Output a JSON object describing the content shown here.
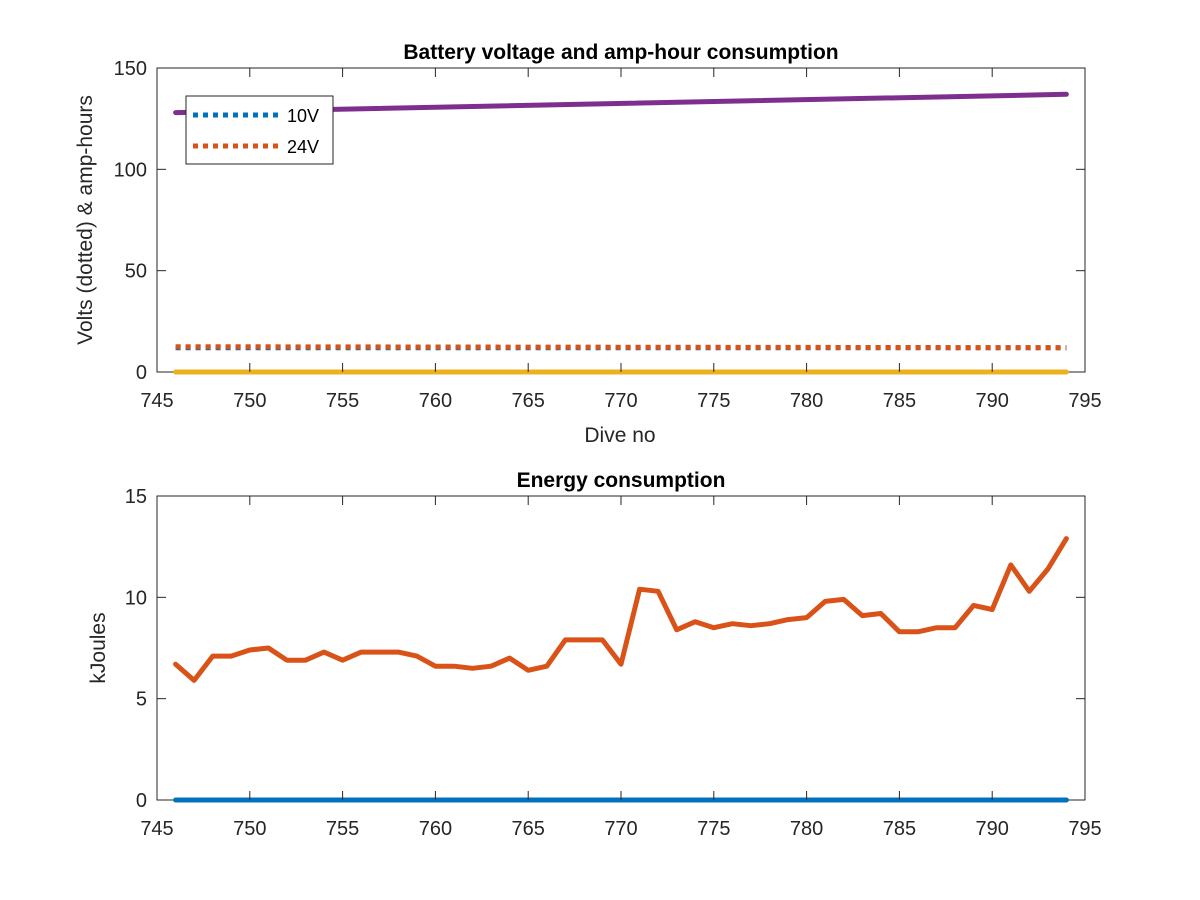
{
  "colors": {
    "blue": "#0072BD",
    "orange": "#D95319",
    "yellow": "#EDB120",
    "purple": "#7E2F8E",
    "axis": "#262626"
  },
  "chart_data": [
    {
      "type": "line",
      "title": "Battery voltage and amp-hour consumption",
      "xlabel": "Dive no",
      "ylabel": "Volts (dotted) & amp-hours",
      "xlim": [
        745,
        795
      ],
      "ylim": [
        0,
        150
      ],
      "xticks": [
        745,
        750,
        755,
        760,
        765,
        770,
        775,
        780,
        785,
        790,
        795
      ],
      "yticks": [
        0,
        50,
        100,
        150
      ],
      "grid": false,
      "legend": {
        "placement": "top-left",
        "entries": [
          "10V",
          "24V"
        ]
      },
      "series": [
        {
          "name": "10V",
          "style": "dotted",
          "color": "#0072BD",
          "x": [
            746,
            794
          ],
          "y": [
            12,
            12
          ]
        },
        {
          "name": "24V",
          "style": "dotted",
          "color": "#D95319",
          "x": [
            746,
            794
          ],
          "y": [
            12.5,
            12
          ]
        },
        {
          "style": "solid",
          "color": "#EDB120",
          "x": [
            746,
            794
          ],
          "y": [
            0,
            0
          ]
        },
        {
          "style": "solid",
          "color": "#7E2F8E",
          "x": [
            746,
            794
          ],
          "y": [
            128,
            137
          ]
        }
      ]
    },
    {
      "type": "line",
      "title": "Energy consumption",
      "xlabel": "",
      "ylabel": "kJoules",
      "xlim": [
        745,
        795
      ],
      "ylim": [
        0,
        15
      ],
      "xticks": [
        745,
        750,
        755,
        760,
        765,
        770,
        775,
        780,
        785,
        790,
        795
      ],
      "yticks": [
        0,
        5,
        10,
        15
      ],
      "grid": false,
      "series": [
        {
          "style": "solid",
          "color": "#0072BD",
          "x": [
            746,
            794
          ],
          "y": [
            0,
            0
          ]
        },
        {
          "style": "solid",
          "color": "#D95319",
          "x": [
            746,
            747,
            748,
            749,
            750,
            751,
            752,
            753,
            754,
            755,
            756,
            757,
            758,
            759,
            760,
            761,
            762,
            763,
            764,
            765,
            766,
            767,
            768,
            769,
            770,
            771,
            772,
            773,
            774,
            775,
            776,
            777,
            778,
            779,
            780,
            781,
            782,
            783,
            784,
            785,
            786,
            787,
            788,
            789,
            790,
            791,
            792,
            793,
            794
          ],
          "y": [
            6.7,
            5.9,
            7.1,
            7.1,
            7.4,
            7.5,
            6.9,
            6.9,
            7.3,
            6.9,
            7.3,
            7.3,
            7.3,
            7.1,
            6.6,
            6.6,
            6.5,
            6.6,
            7.0,
            6.4,
            6.6,
            7.9,
            7.9,
            7.9,
            6.7,
            10.4,
            10.3,
            8.4,
            8.8,
            8.5,
            8.7,
            8.6,
            8.7,
            8.9,
            9.0,
            9.8,
            9.9,
            9.1,
            9.2,
            8.3,
            8.3,
            8.5,
            8.5,
            9.6,
            9.4,
            11.6,
            10.3,
            11.4,
            12.9
          ]
        }
      ]
    }
  ]
}
